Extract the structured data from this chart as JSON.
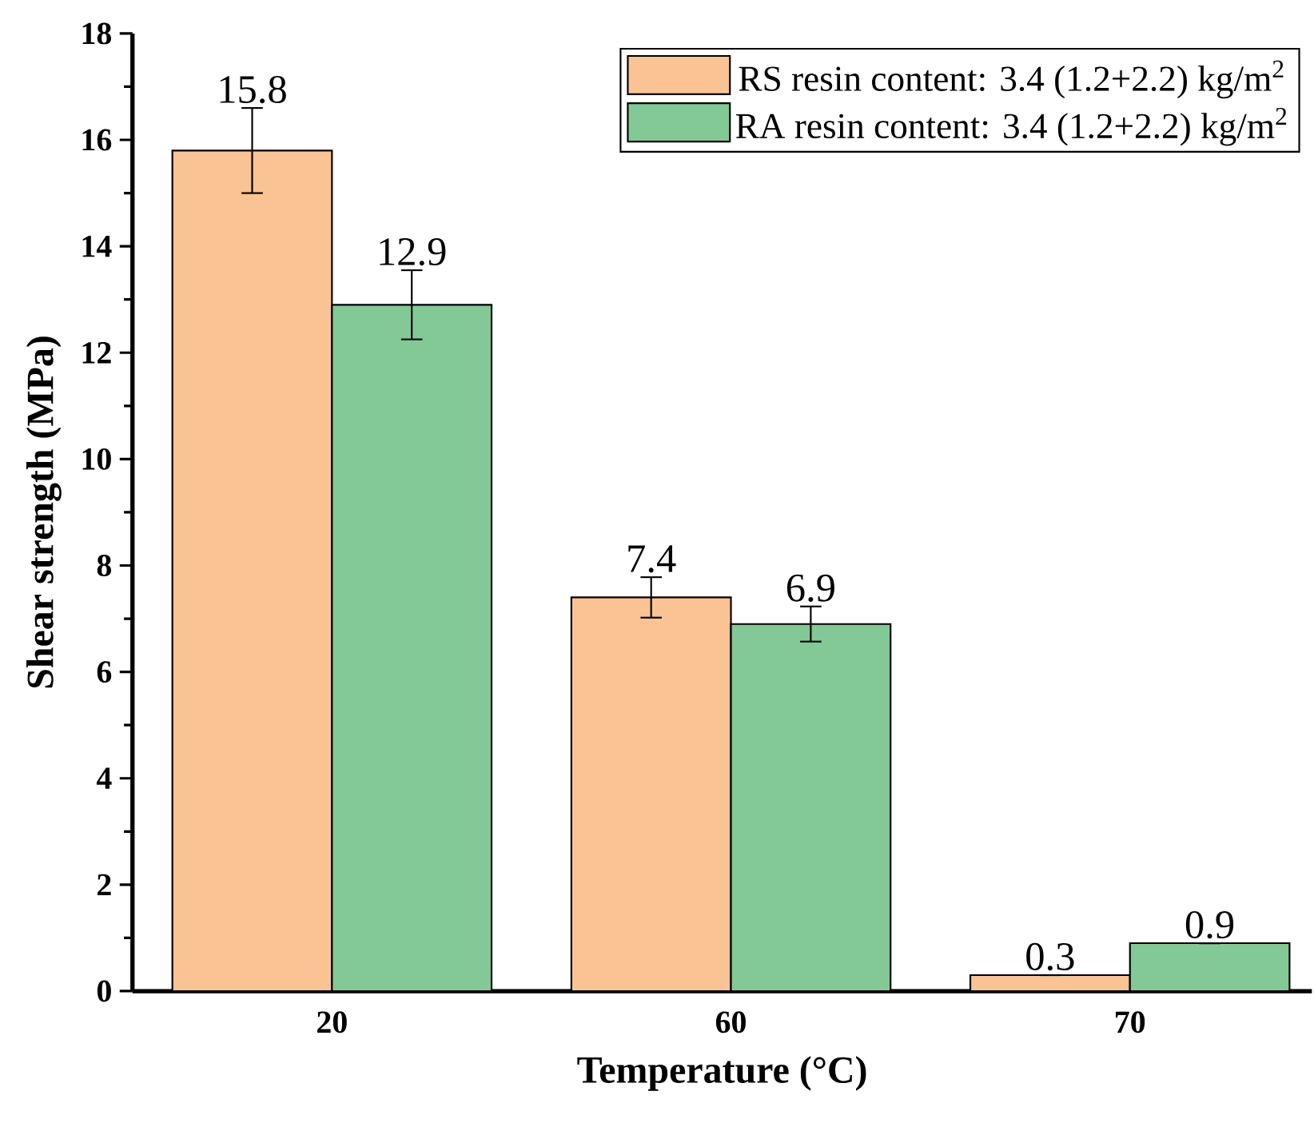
{
  "chart_data": {
    "type": "bar",
    "xlabel": "Temperature (°C)",
    "ylabel": "Shear strength (MPa)",
    "categories": [
      "20",
      "60",
      "70"
    ],
    "series": [
      {
        "name": "RS resin content: 3.4 (1.2+2.2) kg/m$^{2}$",
        "color": "#f9c393",
        "values": [
          15.8,
          7.4,
          0.3
        ],
        "errors": [
          0.8,
          0.38,
          null
        ]
      },
      {
        "name": "RA resin content: 3.4 (1.2+2.2) kg/m$^{2}$",
        "color": "#82c995",
        "values": [
          12.9,
          6.9,
          0.9
        ],
        "errors": [
          0.65,
          0.33,
          null
        ]
      }
    ],
    "ylim": [
      0,
      18
    ],
    "yticks": [
      0,
      2,
      4,
      6,
      8,
      10,
      12,
      14,
      16,
      18
    ],
    "data_labels": true,
    "legend": "top right",
    "grid": false
  }
}
